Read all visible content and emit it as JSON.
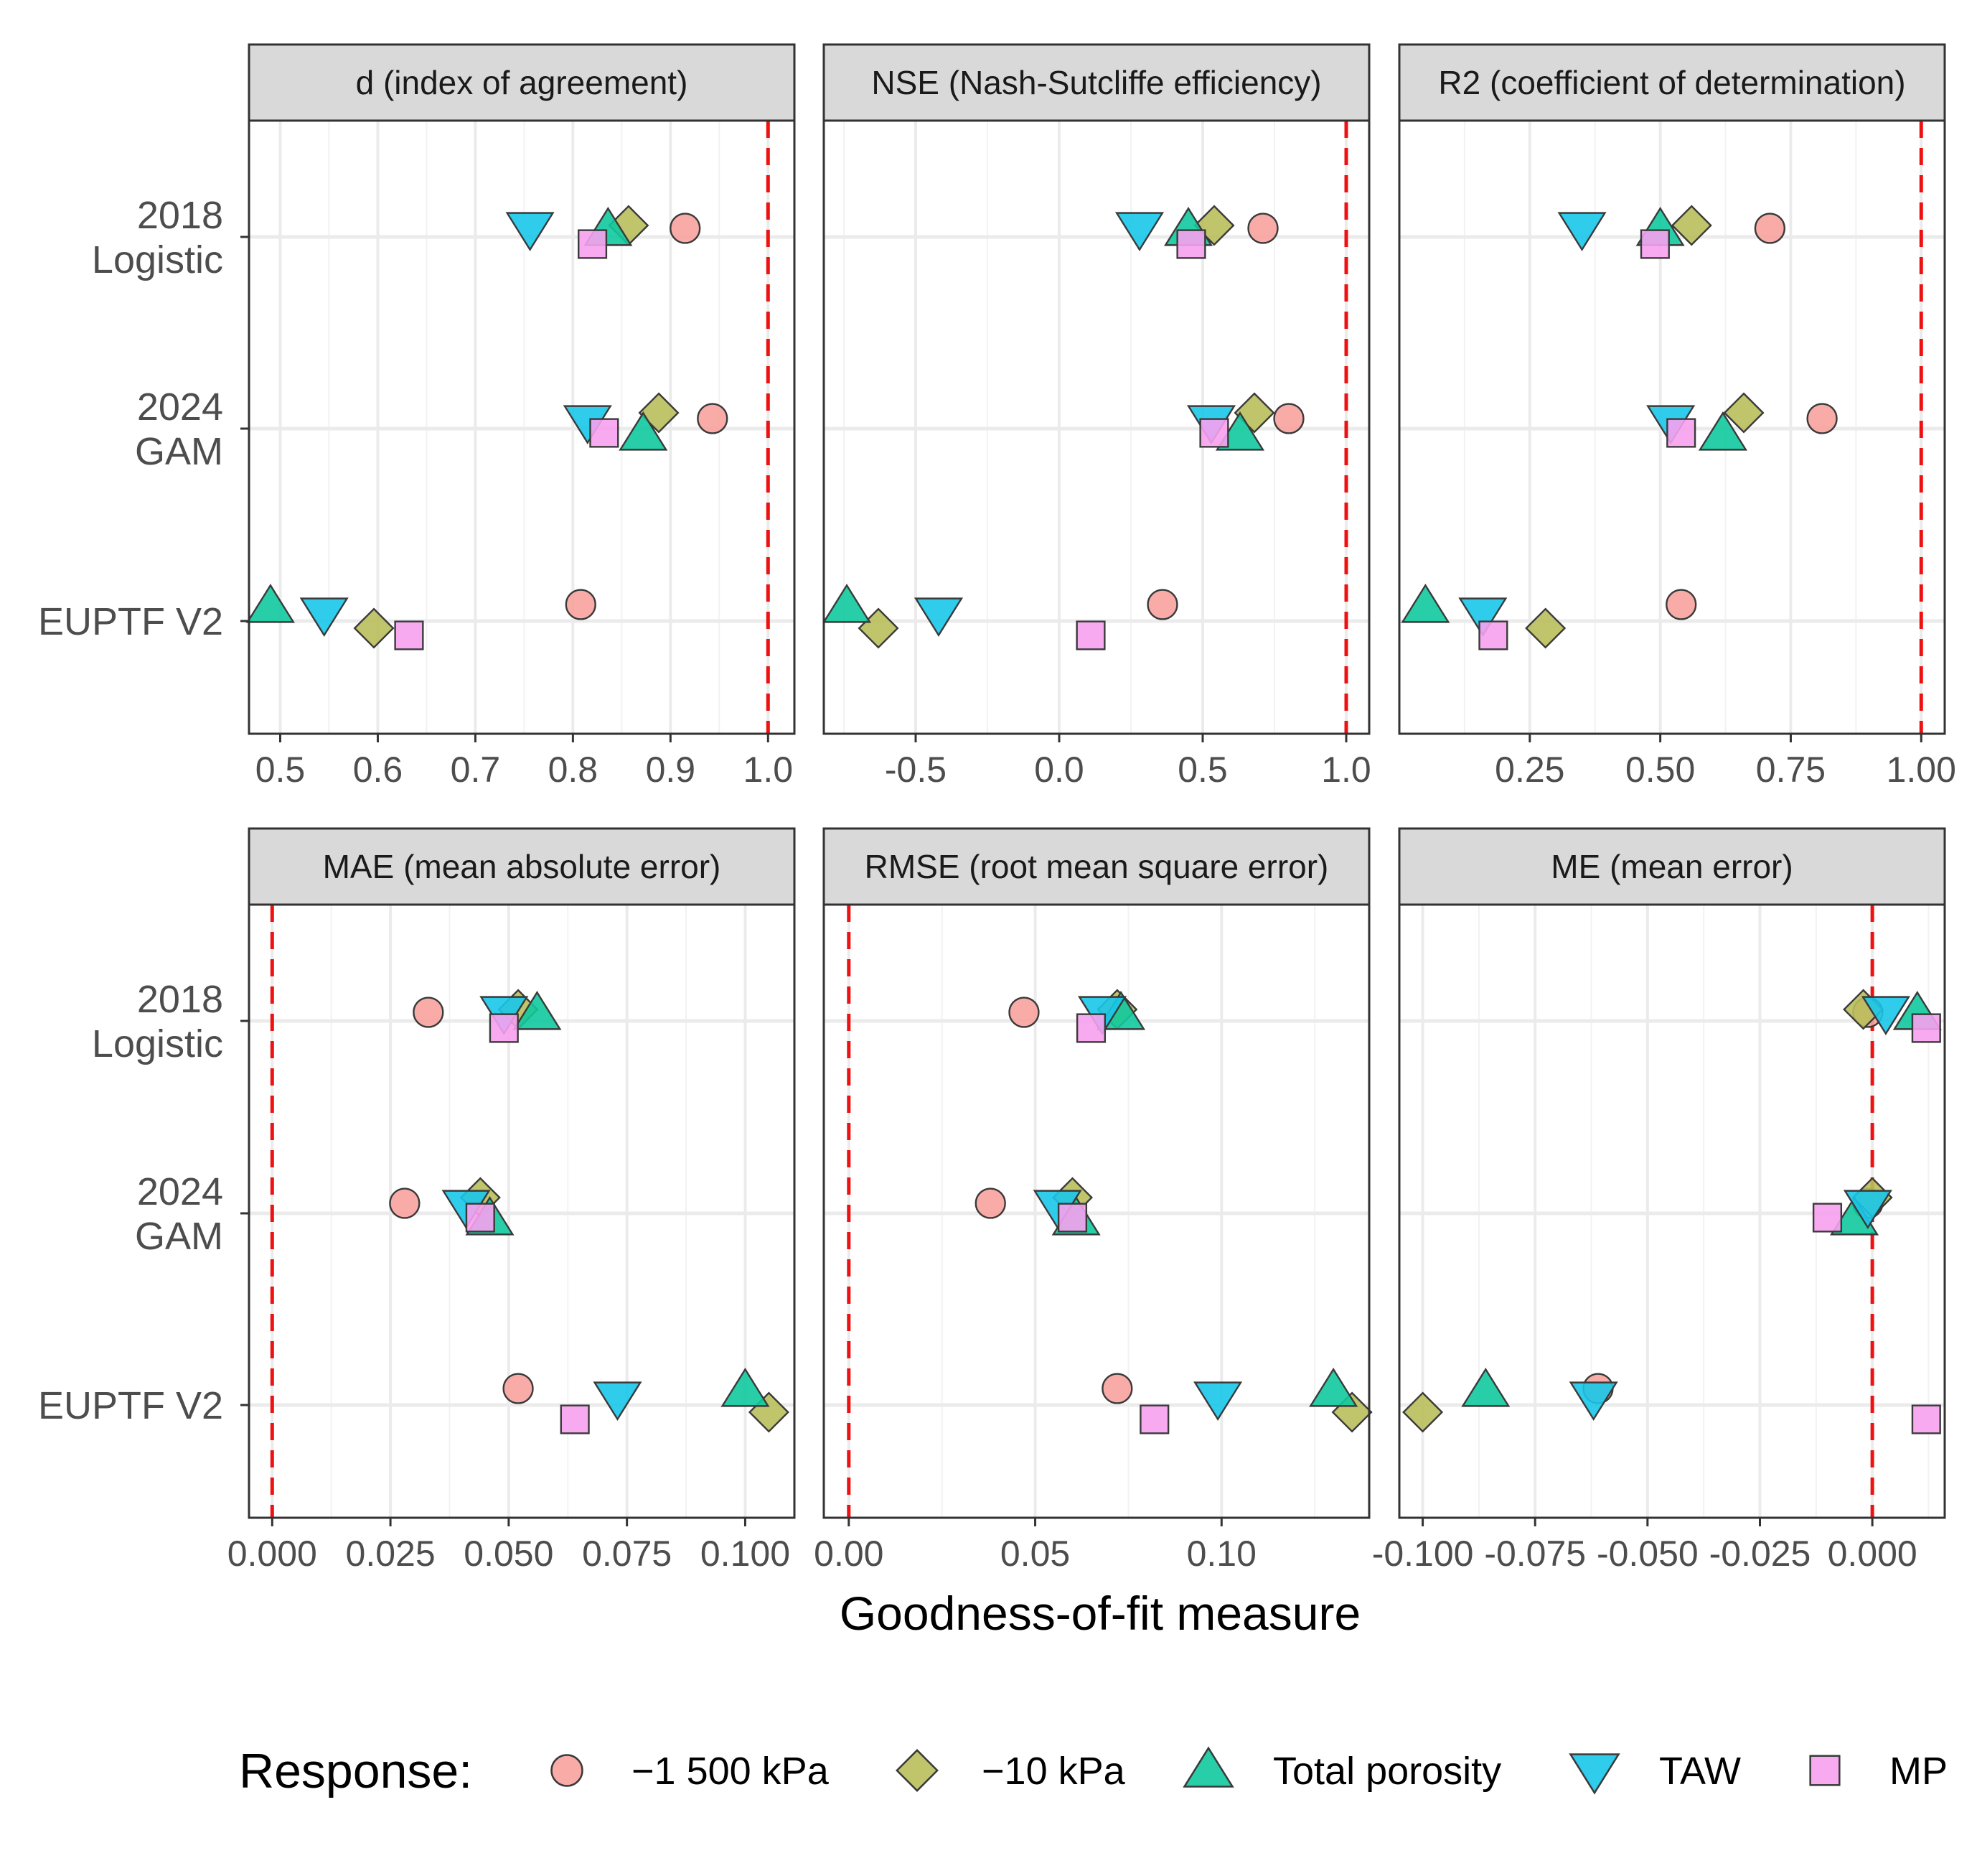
{
  "colors": {
    "-1 500 kPa": "#f8a39d",
    "-10 kPa": "#b9be5b",
    "Total porosity": "#10c99d",
    "TAW": "#1ac6ea",
    "MP": "#f7a1ef",
    "reference_line": "#ee1111",
    "strip_bg": "#d9d9d9",
    "grid": "#ebebeb",
    "panel_border": "#333333"
  },
  "chart_data": {
    "type": "scatter",
    "xlabel": "Goodness-of-fit measure",
    "ylabel": "",
    "categories": [
      "2018\nLogistic",
      "2024\nGAM",
      "EUPTF V2"
    ],
    "legend": {
      "title": "Response:",
      "position": "bottom",
      "entries": [
        {
          "label": "−1 500 kPa",
          "key": "-1 500 kPa",
          "shape": "circle"
        },
        {
          "label": "−10 kPa",
          "key": "-10 kPa",
          "shape": "diamond"
        },
        {
          "label": "Total porosity",
          "key": "Total porosity",
          "shape": "triangle-up"
        },
        {
          "label": "TAW",
          "key": "TAW",
          "shape": "triangle-down"
        },
        {
          "label": "MP",
          "key": "MP",
          "shape": "square"
        }
      ]
    },
    "panels": [
      {
        "title": "d (index of agreement)",
        "reference": 1.0,
        "xlim": [
          0.468,
          1.027
        ],
        "ticks": [
          0.5,
          0.6,
          0.7,
          0.8,
          0.9,
          1.0
        ],
        "tick_labels": [
          "0.5",
          "0.6",
          "0.7",
          "0.8",
          "0.9",
          "1.0"
        ],
        "series": [
          {
            "name": "-1 500 kPa",
            "values": [
              0.915,
              0.943,
              0.808
            ]
          },
          {
            "name": "-10 kPa",
            "values": [
              0.857,
              0.888,
              0.596
            ]
          },
          {
            "name": "Total porosity",
            "values": [
              0.836,
              0.872,
              0.49
            ]
          },
          {
            "name": "TAW",
            "values": [
              0.756,
              0.815,
              0.545
            ]
          },
          {
            "name": "MP",
            "values": [
              0.82,
              0.832,
              0.632
            ]
          }
        ]
      },
      {
        "title": "NSE (Nash-Sutcliffe efficiency)",
        "reference": 1.0,
        "xlim": [
          -0.82,
          1.08
        ],
        "ticks": [
          -0.5,
          0.0,
          0.5,
          1.0
        ],
        "tick_labels": [
          "-0.5",
          "0.0",
          "0.5",
          "1.0"
        ],
        "series": [
          {
            "name": "-1 500 kPa",
            "values": [
              0.71,
              0.8,
              0.36
            ]
          },
          {
            "name": "-10 kPa",
            "values": [
              0.54,
              0.68,
              -0.63
            ]
          },
          {
            "name": "Total porosity",
            "values": [
              0.45,
              0.63,
              -0.74
            ]
          },
          {
            "name": "TAW",
            "values": [
              0.28,
              0.53,
              -0.42
            ]
          },
          {
            "name": "MP",
            "values": [
              0.46,
              0.54,
              0.11
            ]
          }
        ]
      },
      {
        "title": "R2 (coefficient of determination)",
        "reference": 1.0,
        "xlim": [
          0.0,
          1.045
        ],
        "ticks": [
          0.25,
          0.5,
          0.75,
          1.0
        ],
        "tick_labels": [
          "0.25",
          "0.50",
          "0.75",
          "1.00"
        ],
        "series": [
          {
            "name": "-1 500 kPa",
            "values": [
              0.71,
              0.81,
              0.54
            ]
          },
          {
            "name": "-10 kPa",
            "values": [
              0.56,
              0.66,
              0.28
            ]
          },
          {
            "name": "Total porosity",
            "values": [
              0.5,
              0.62,
              0.05
            ]
          },
          {
            "name": "TAW",
            "values": [
              0.35,
              0.52,
              0.16
            ]
          },
          {
            "name": "MP",
            "values": [
              0.49,
              0.54,
              0.18
            ]
          }
        ]
      },
      {
        "title": "MAE (mean absolute error)",
        "reference": 0.0,
        "xlim": [
          -0.0049,
          0.1104
        ],
        "ticks": [
          0.0,
          0.025,
          0.05,
          0.075,
          0.1
        ],
        "tick_labels": [
          "0.000",
          "0.025",
          "0.050",
          "0.075",
          "0.100"
        ],
        "series": [
          {
            "name": "-1 500 kPa",
            "values": [
              0.033,
              0.028,
              0.052
            ]
          },
          {
            "name": "-10 kPa",
            "values": [
              0.052,
              0.044,
              0.105
            ]
          },
          {
            "name": "Total porosity",
            "values": [
              0.056,
              0.046,
              0.1
            ]
          },
          {
            "name": "TAW",
            "values": [
              0.049,
              0.041,
              0.073
            ]
          },
          {
            "name": "MP",
            "values": [
              0.049,
              0.044,
              0.064
            ]
          }
        ]
      },
      {
        "title": "RMSE (root mean square error)",
        "reference": 0.0,
        "xlim": [
          -0.0067,
          0.1396
        ],
        "ticks": [
          0.0,
          0.05,
          0.1
        ],
        "tick_labels": [
          "0.00",
          "0.05",
          "0.10"
        ],
        "series": [
          {
            "name": "-1 500 kPa",
            "values": [
              0.047,
              0.038,
              0.072
            ]
          },
          {
            "name": "-10 kPa",
            "values": [
              0.072,
              0.06,
              0.135
            ]
          },
          {
            "name": "Total porosity",
            "values": [
              0.073,
              0.061,
              0.13
            ]
          },
          {
            "name": "TAW",
            "values": [
              0.068,
              0.056,
              0.099
            ]
          },
          {
            "name": "MP",
            "values": [
              0.065,
              0.06,
              0.082
            ]
          }
        ]
      },
      {
        "title": "ME (mean error)",
        "reference": 0.0,
        "xlim": [
          -0.1052,
          0.0161
        ],
        "ticks": [
          -0.1,
          -0.075,
          -0.05,
          -0.025,
          0.0
        ],
        "tick_labels": [
          "-0.100",
          "-0.075",
          "-0.050",
          "-0.025",
          "0.000"
        ],
        "series": [
          {
            "name": "-1 500 kPa",
            "values": [
              -0.001,
              -0.001,
              -0.061
            ]
          },
          {
            "name": "-10 kPa",
            "values": [
              -0.002,
              0.0,
              -0.1
            ]
          },
          {
            "name": "Total porosity",
            "values": [
              0.01,
              -0.004,
              -0.086
            ]
          },
          {
            "name": "TAW",
            "values": [
              0.003,
              -0.001,
              -0.062
            ]
          },
          {
            "name": "MP",
            "values": [
              0.012,
              -0.01,
              0.012
            ]
          }
        ]
      }
    ]
  }
}
